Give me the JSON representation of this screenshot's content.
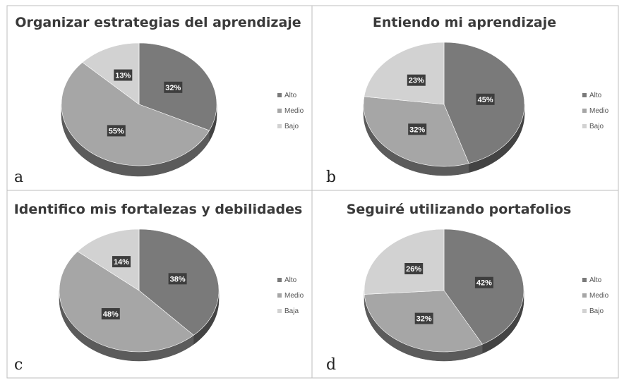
{
  "chart_data": [
    {
      "type": "pie",
      "panel": "a",
      "title": "Organizar estrategias del aprendizaje",
      "categories": [
        "Alto",
        "Medio",
        "Bajo"
      ],
      "values": [
        32,
        55,
        13
      ],
      "labels": [
        "32%",
        "55%",
        "13%"
      ],
      "legend": [
        "Alto",
        "Medio",
        "Bajo"
      ],
      "legend_position": "right"
    },
    {
      "type": "pie",
      "panel": "b",
      "title": "Entiendo mi aprendizaje",
      "categories": [
        "Alto",
        "Medio",
        "Bajo"
      ],
      "values": [
        45,
        32,
        23
      ],
      "labels": [
        "45%",
        "32%",
        "23%"
      ],
      "legend": [
        "Alto",
        "Medio",
        "Bajo"
      ],
      "legend_position": "right"
    },
    {
      "type": "pie",
      "panel": "c",
      "title": "Identifico mis fortalezas y debilidades",
      "categories": [
        "Alto",
        "Medio",
        "Baja"
      ],
      "values": [
        38,
        48,
        14
      ],
      "labels": [
        "38%",
        "48%",
        "14%"
      ],
      "legend": [
        "Alto",
        "Medio",
        "Baja"
      ],
      "legend_position": "right"
    },
    {
      "type": "pie",
      "panel": "d",
      "title": "Seguiré utilizando portafolios",
      "categories": [
        "Alto",
        "Medio",
        "Bajo"
      ],
      "values": [
        42,
        32,
        26
      ],
      "labels": [
        "42%",
        "32%",
        "26%"
      ],
      "legend": [
        "Alto",
        "Medio",
        "Bajo"
      ],
      "legend_position": "right"
    }
  ],
  "colors": {
    "alto": "#7a7a7a",
    "medio": "#a6a6a6",
    "bajo": "#d2d2d2",
    "label_box": "#3d3d3d"
  }
}
